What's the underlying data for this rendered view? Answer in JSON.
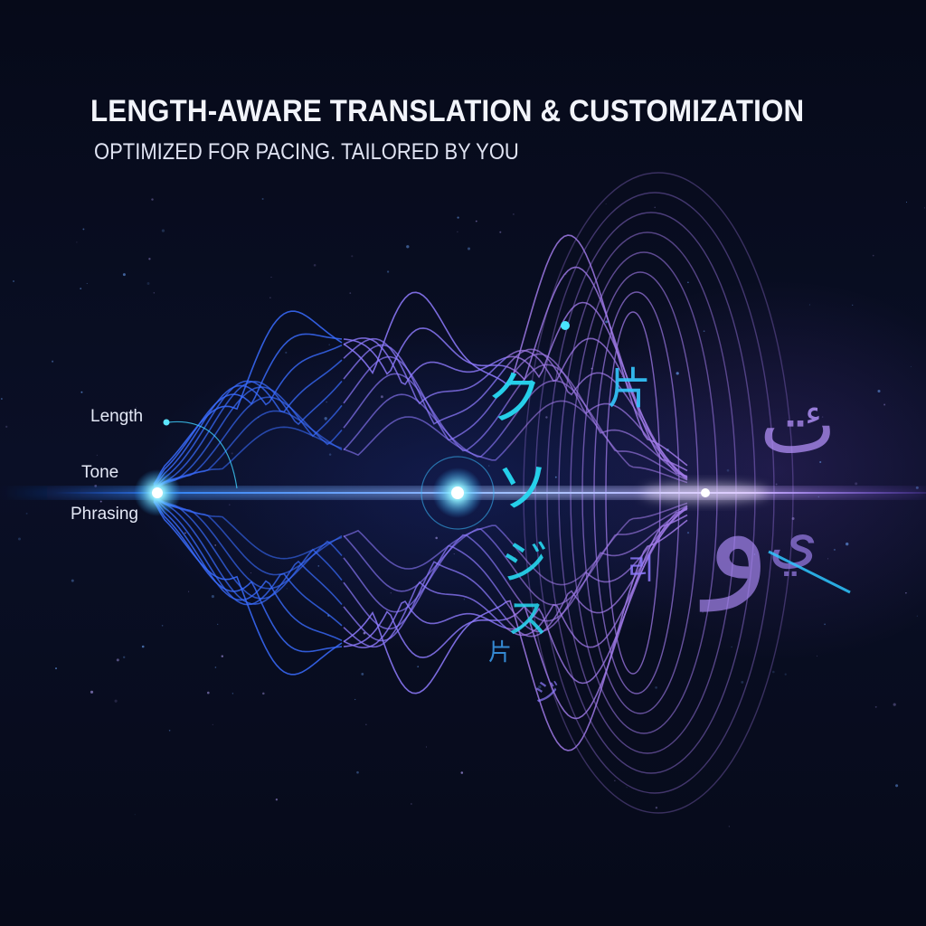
{
  "header": {
    "title": "LENGTH-AWARE TRANSLATION & CUSTOMIZATION",
    "subtitle": "OPTIMIZED FOR PACING. TAILORED BY YOU"
  },
  "labels": {
    "length": "Length",
    "tone": "Tone",
    "phrasing": "Phrasing"
  },
  "colors": {
    "background": "#070b1c",
    "blue_wave": "#3a6cff",
    "violet_wave": "#8f7bff",
    "purple_wave": "#a07ae8",
    "cyan_glyph": "#27d9f2",
    "glow": "#9fe9ff"
  }
}
